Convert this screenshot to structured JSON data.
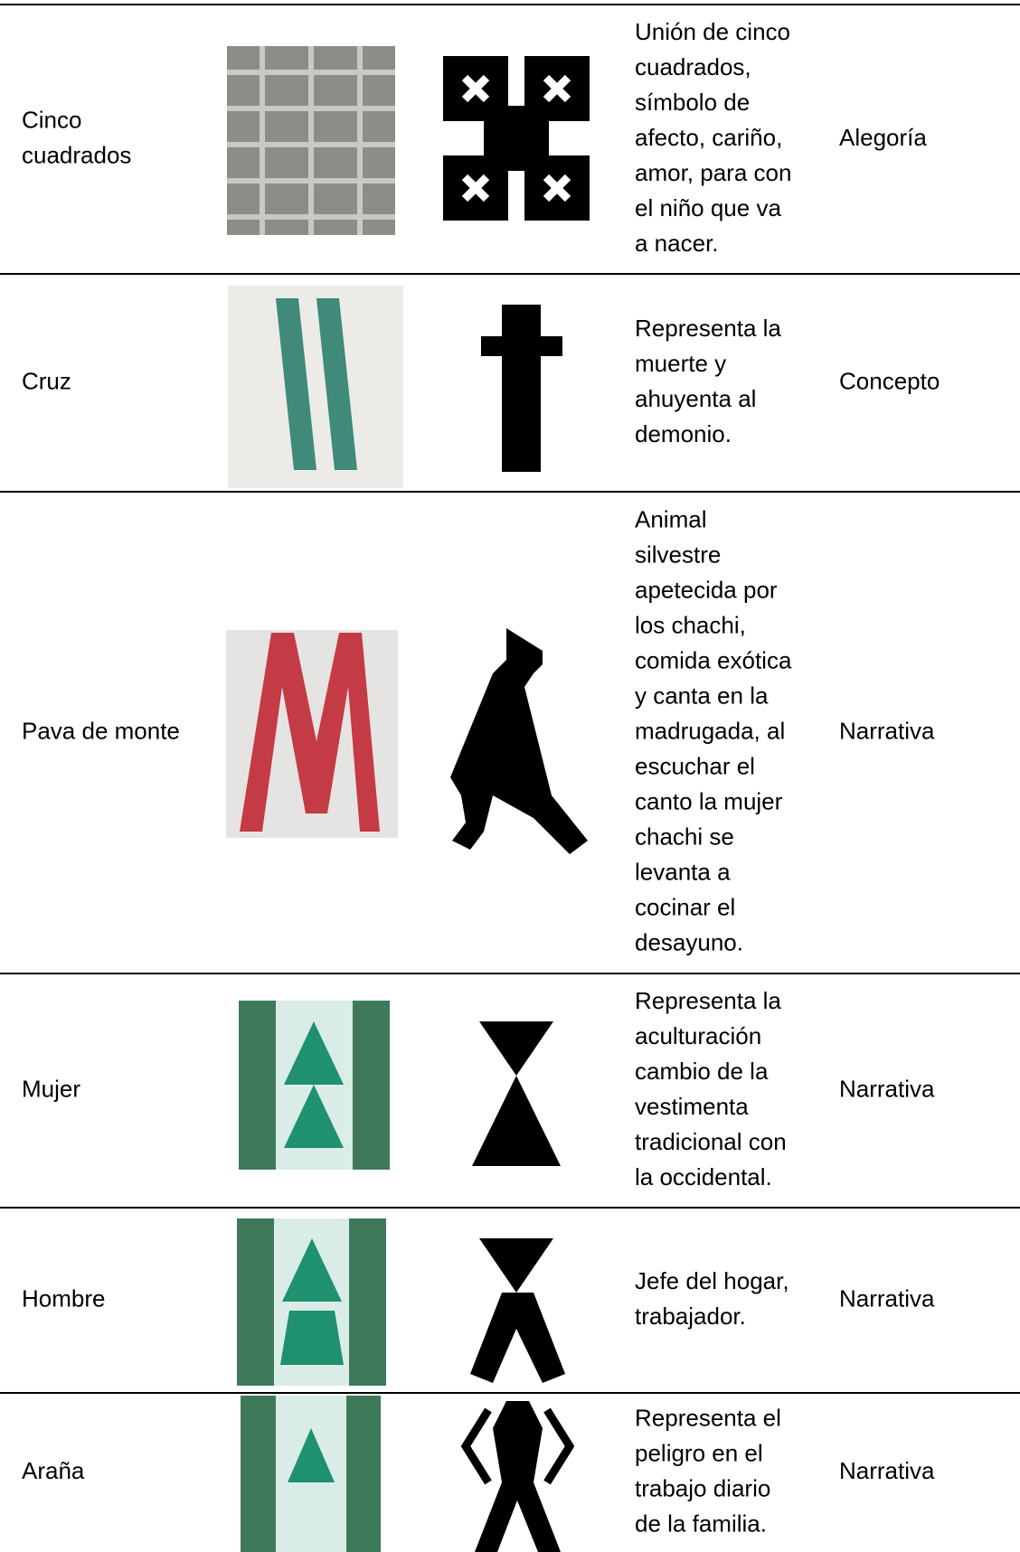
{
  "table": {
    "rows": [
      {
        "name": [
          "Cinco",
          "cuadrados"
        ],
        "description": [
          "Unión de cinco",
          "cuadrados,",
          "símbolo de",
          "afecto, cariño,",
          "amor, para con",
          "el niño que va",
          "a nacer."
        ],
        "type": "Alegoría"
      },
      {
        "name": [
          "Cruz"
        ],
        "description": [
          "Representa la",
          "muerte y",
          "ahuyenta al",
          "demonio."
        ],
        "type": "Concepto"
      },
      {
        "name": [
          "Pava de monte"
        ],
        "description": [
          "Animal",
          "silvestre",
          "apetecida por",
          "los chachi,",
          "comida exótica",
          "y canta en la",
          "madrugada, al",
          "escuchar el",
          "canto la mujer",
          "chachi se",
          "levanta a",
          "cocinar el",
          "desayuno."
        ],
        "type": "Narrativa"
      },
      {
        "name": [
          "Mujer"
        ],
        "description": [
          "Representa la",
          "aculturación",
          "cambio de la",
          "vestimenta",
          "tradicional con",
          "la occidental."
        ],
        "type": "Narrativa"
      },
      {
        "name": [
          "Hombre"
        ],
        "description": [
          "Jefe del hogar,",
          "trabajador."
        ],
        "type": "Narrativa"
      },
      {
        "name": [
          "Araña"
        ],
        "description": [
          "Representa el",
          "peligro en el",
          "trabajo diario",
          "de la familia."
        ],
        "type": "Narrativa"
      }
    ]
  }
}
